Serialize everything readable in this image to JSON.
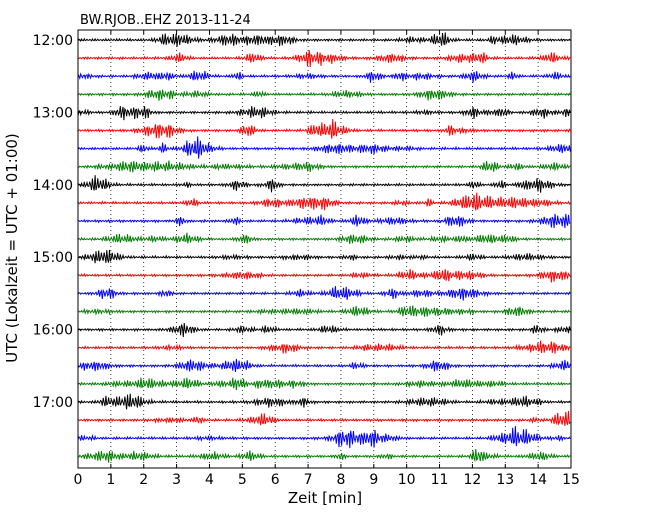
{
  "chart_data": {
    "type": "line",
    "subtype": "dayplot",
    "title": "BW.RJOB..EHZ 2013-11-24",
    "xlabel": "Zeit  [min]",
    "ylabel": "UTC (Lokalzeit = UTC + 01:00)",
    "xlim": [
      0,
      15
    ],
    "x_ticks": [
      0,
      1,
      2,
      3,
      4,
      5,
      6,
      7,
      8,
      9,
      10,
      11,
      12,
      13,
      14,
      15
    ],
    "y_tick_labels": [
      "12:00",
      "13:00",
      "14:00",
      "15:00",
      "16:00",
      "17:00"
    ],
    "traces_per_hour": 4,
    "minutes_per_trace": 15,
    "trace_start_times": [
      "12:00",
      "12:15",
      "12:30",
      "12:45",
      "13:00",
      "13:15",
      "13:30",
      "13:45",
      "14:00",
      "14:15",
      "14:30",
      "14:45",
      "15:00",
      "15:15",
      "15:30",
      "15:45",
      "16:00",
      "16:15",
      "16:30",
      "16:45",
      "17:00",
      "17:15",
      "17:30",
      "17:45"
    ],
    "color_cycle": [
      "#000000",
      "#ff0000",
      "#0000ff",
      "#007f00"
    ],
    "vertical_grid": "dotted",
    "legend": "none"
  }
}
